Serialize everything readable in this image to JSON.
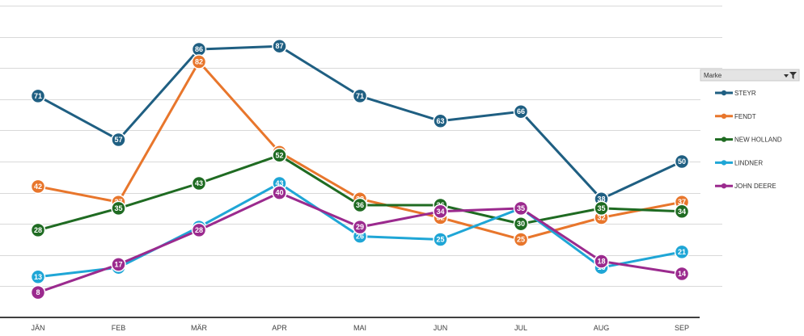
{
  "chart_data": {
    "type": "line",
    "categories": [
      "JÄN",
      "FEB",
      "MÄR",
      "APR",
      "MAI",
      "JUN",
      "JUL",
      "AUG",
      "SEP"
    ],
    "ylim": [
      0,
      100
    ],
    "grid": true,
    "legend_title": "Marke",
    "legend_position": "right",
    "series": [
      {
        "name": "STEYR",
        "color": "#1f5f82",
        "values": [
          71,
          57,
          86,
          87,
          71,
          63,
          66,
          38,
          50
        ]
      },
      {
        "name": "FENDT",
        "color": "#e8762c",
        "values": [
          42,
          37,
          82,
          53,
          38,
          32,
          25,
          32,
          37
        ]
      },
      {
        "name": "NEW HOLLAND",
        "color": "#1f6b22",
        "values": [
          28,
          35,
          43,
          52,
          36,
          36,
          30,
          35,
          34
        ]
      },
      {
        "name": "LINDNER",
        "color": "#1fa6d6",
        "values": [
          13,
          16,
          29,
          43,
          26,
          25,
          35,
          16,
          21
        ]
      },
      {
        "name": "JOHN DEERE",
        "color": "#9b2a8e",
        "values": [
          8,
          17,
          28,
          40,
          29,
          34,
          35,
          18,
          14
        ]
      }
    ]
  },
  "legend": {
    "title": "Marke",
    "filter_icon": "filter-icon",
    "items": [
      "STEYR",
      "FENDT",
      "NEW HOLLAND",
      "LINDNER",
      "JOHN DEERE"
    ]
  }
}
